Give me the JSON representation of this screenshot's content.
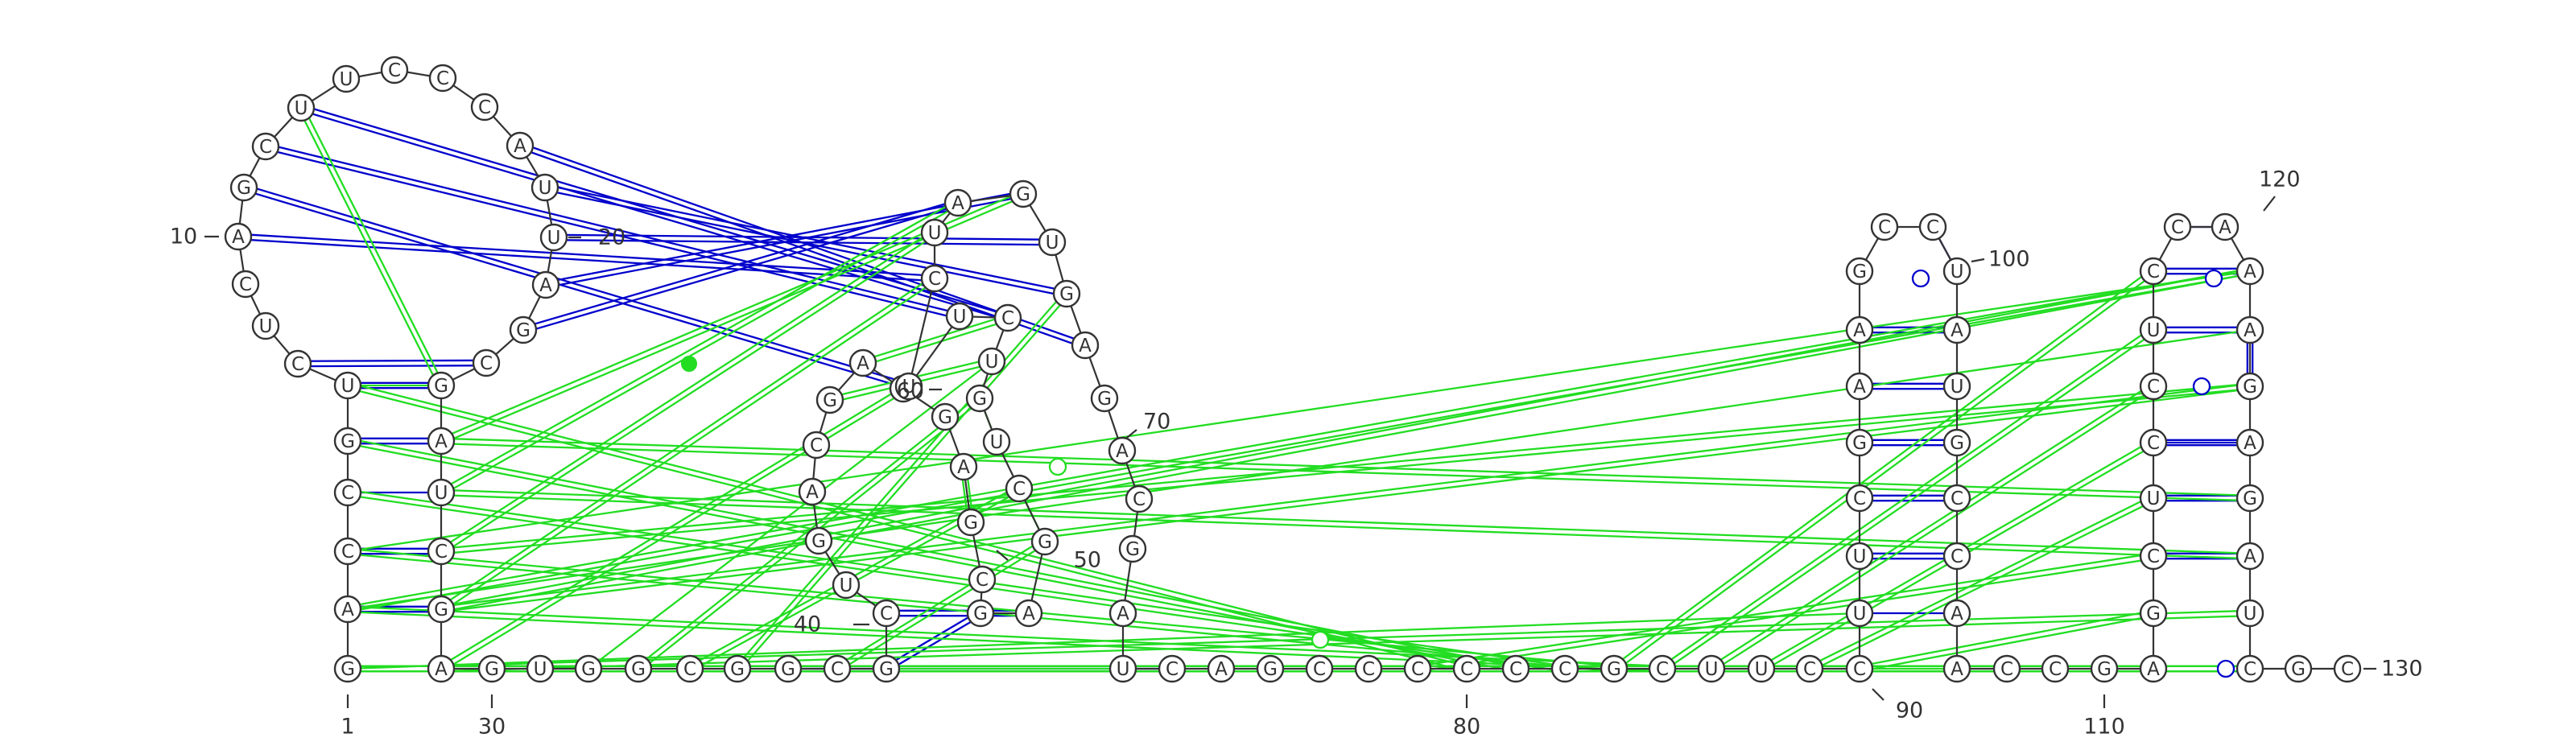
{
  "molecule": {
    "sequence": "GACCGUCUCAGCUUCCCAUUAGCGAUCGAGUGGCGGCGCUGACGAGGAGCGAGCUGUCUUCUAGUGAGACGAUCAGCCCCCCGCUUCCUUCGAAGCCUAUGCCAACCGAGCUCCUCCAAAGAGAUCGCC"
  },
  "number_labels": [
    "1",
    "10",
    "20",
    "30",
    "40",
    "50",
    "60",
    "70",
    "80",
    "90",
    "100",
    "110",
    "120",
    "130"
  ],
  "interaction_colors": {
    "canonical": "#0000cc",
    "non_canonical": "#22dd22"
  }
}
